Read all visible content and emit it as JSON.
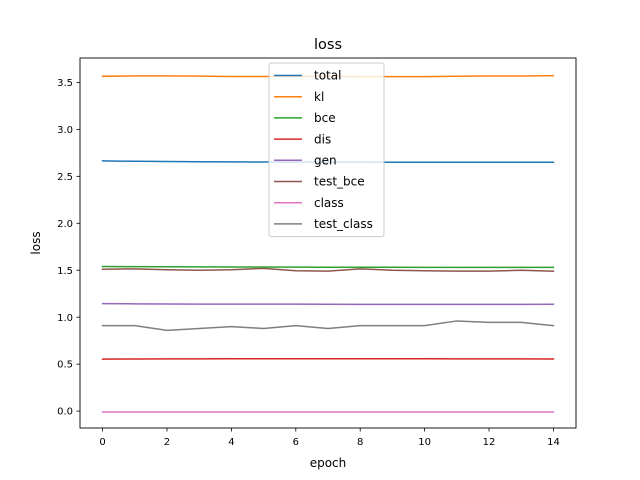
{
  "chart_data": {
    "type": "line",
    "title": "loss",
    "xlabel": "epoch",
    "ylabel": "loss",
    "xlim": [
      -0.7,
      14.7
    ],
    "ylim": [
      -0.18,
      3.76
    ],
    "xticks": [
      0,
      2,
      4,
      6,
      8,
      10,
      12,
      14
    ],
    "yticks": [
      0.0,
      0.5,
      1.0,
      1.5,
      2.0,
      2.5,
      3.0,
      3.5
    ],
    "ytick_labels": [
      "0.0",
      "0.5",
      "1.0",
      "1.5",
      "2.0",
      "2.5",
      "3.0",
      "3.5"
    ],
    "grid": false,
    "legend_position": "top-center",
    "x": [
      0,
      1,
      2,
      3,
      4,
      5,
      6,
      7,
      8,
      9,
      10,
      11,
      12,
      13,
      14
    ],
    "series": [
      {
        "name": "total",
        "color": "#1f77b4",
        "values": [
          2.665,
          2.66,
          2.658,
          2.655,
          2.654,
          2.652,
          2.652,
          2.651,
          2.651,
          2.65,
          2.65,
          2.65,
          2.65,
          2.65,
          2.65
        ]
      },
      {
        "name": "kl",
        "color": "#ff7f0e",
        "values": [
          3.565,
          3.57,
          3.57,
          3.567,
          3.563,
          3.563,
          3.563,
          3.565,
          3.562,
          3.562,
          3.562,
          3.565,
          3.568,
          3.568,
          3.572
        ]
      },
      {
        "name": "bce",
        "color": "#2ca02c",
        "values": [
          1.54,
          1.538,
          1.537,
          1.536,
          1.535,
          1.534,
          1.533,
          1.532,
          1.532,
          1.532,
          1.531,
          1.531,
          1.53,
          1.53,
          1.53
        ]
      },
      {
        "name": "dis",
        "color": "#d62728",
        "values": [
          0.553,
          0.555,
          0.556,
          0.556,
          0.557,
          0.557,
          0.557,
          0.557,
          0.557,
          0.557,
          0.557,
          0.556,
          0.556,
          0.556,
          0.555
        ]
      },
      {
        "name": "gen",
        "color": "#9467bd",
        "values": [
          1.145,
          1.142,
          1.14,
          1.139,
          1.139,
          1.139,
          1.139,
          1.138,
          1.137,
          1.137,
          1.137,
          1.137,
          1.137,
          1.137,
          1.138
        ]
      },
      {
        "name": "test_bce",
        "color": "#8c564b",
        "values": [
          1.51,
          1.515,
          1.505,
          1.5,
          1.505,
          1.52,
          1.495,
          1.49,
          1.515,
          1.5,
          1.495,
          1.49,
          1.49,
          1.5,
          1.49
        ]
      },
      {
        "name": "class",
        "color": "#e377c2",
        "values": [
          -0.01,
          -0.01,
          -0.01,
          -0.01,
          -0.01,
          -0.01,
          -0.01,
          -0.01,
          -0.01,
          -0.01,
          -0.01,
          -0.01,
          -0.01,
          -0.01,
          -0.01
        ]
      },
      {
        "name": "test_class",
        "color": "#7f7f7f",
        "values": [
          0.91,
          0.91,
          0.86,
          0.88,
          0.9,
          0.88,
          0.91,
          0.88,
          0.91,
          0.91,
          0.91,
          0.96,
          0.945,
          0.945,
          0.91
        ]
      }
    ]
  }
}
